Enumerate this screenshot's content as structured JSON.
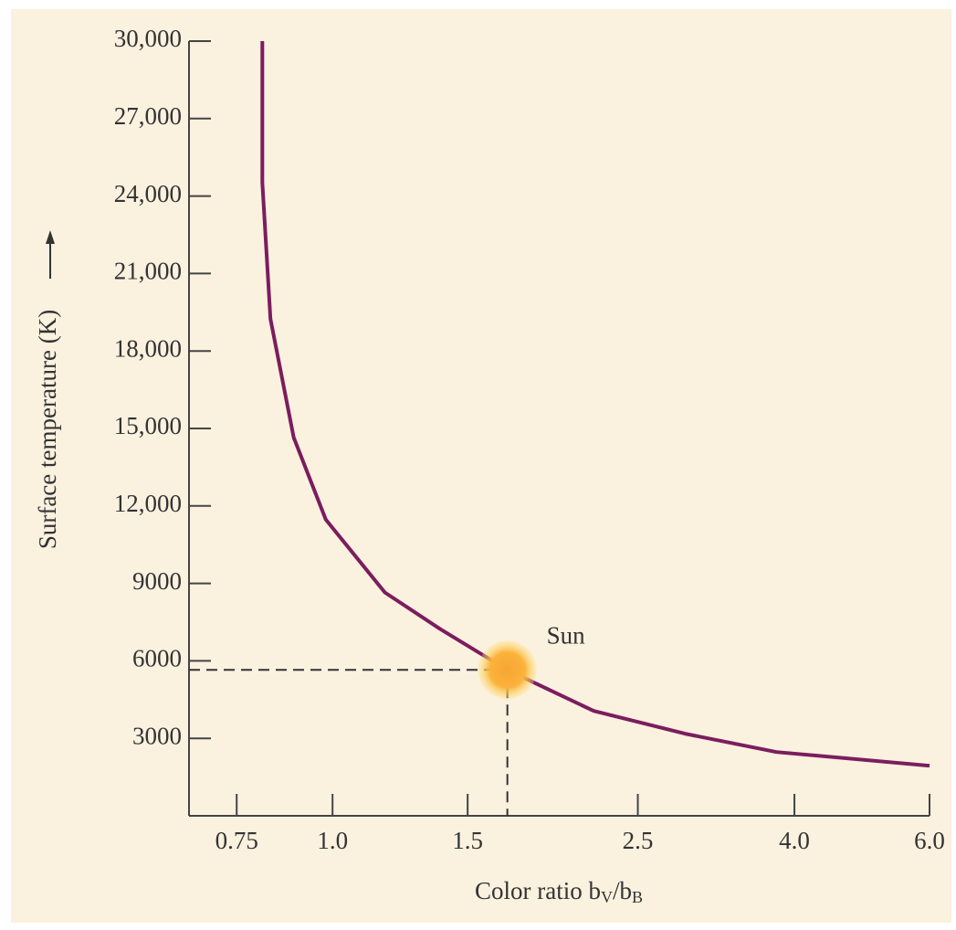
{
  "chart_data": {
    "type": "line",
    "x_label_parts": [
      "Color ratio b",
      "V",
      "/b",
      "B"
    ],
    "y_label": "Surface temperature (K)",
    "x": [
      0.81,
      0.81,
      0.83,
      0.89,
      0.98,
      1.17,
      1.38,
      1.69,
      2.19,
      2.88,
      3.79,
      6.0
    ],
    "series": [
      {
        "color": "#7b1d5e",
        "values": [
          30000,
          24530,
          19240,
          14650,
          11470,
          8650,
          7240,
          5650,
          4060,
          3180,
          2470,
          1940
        ]
      }
    ],
    "xlim": [
      0.65,
      6.0
    ],
    "xscale": "log",
    "xticks": [
      0.75,
      {
        "value": 1.0,
        "label": "1.0"
      },
      1.5,
      2.5,
      {
        "value": 4.0,
        "label": "4.0"
      },
      {
        "value": 6.0,
        "label": "6.0"
      }
    ],
    "ylim": [
      0,
      30000
    ],
    "yticks": [
      3000,
      6000,
      9000,
      {
        "value": 12000,
        "label": "12,000"
      },
      {
        "value": 15000,
        "label": "15,000"
      },
      {
        "value": 18000,
        "label": "18,000"
      },
      {
        "value": 21000,
        "label": "21,000"
      },
      {
        "value": 24000,
        "label": "24,000"
      },
      {
        "value": 27000,
        "label": "27,000"
      },
      {
        "value": 30000,
        "label": "30,000"
      }
    ],
    "sun": {
      "label": "Sun",
      "x": 1.69,
      "y": 5650
    }
  }
}
